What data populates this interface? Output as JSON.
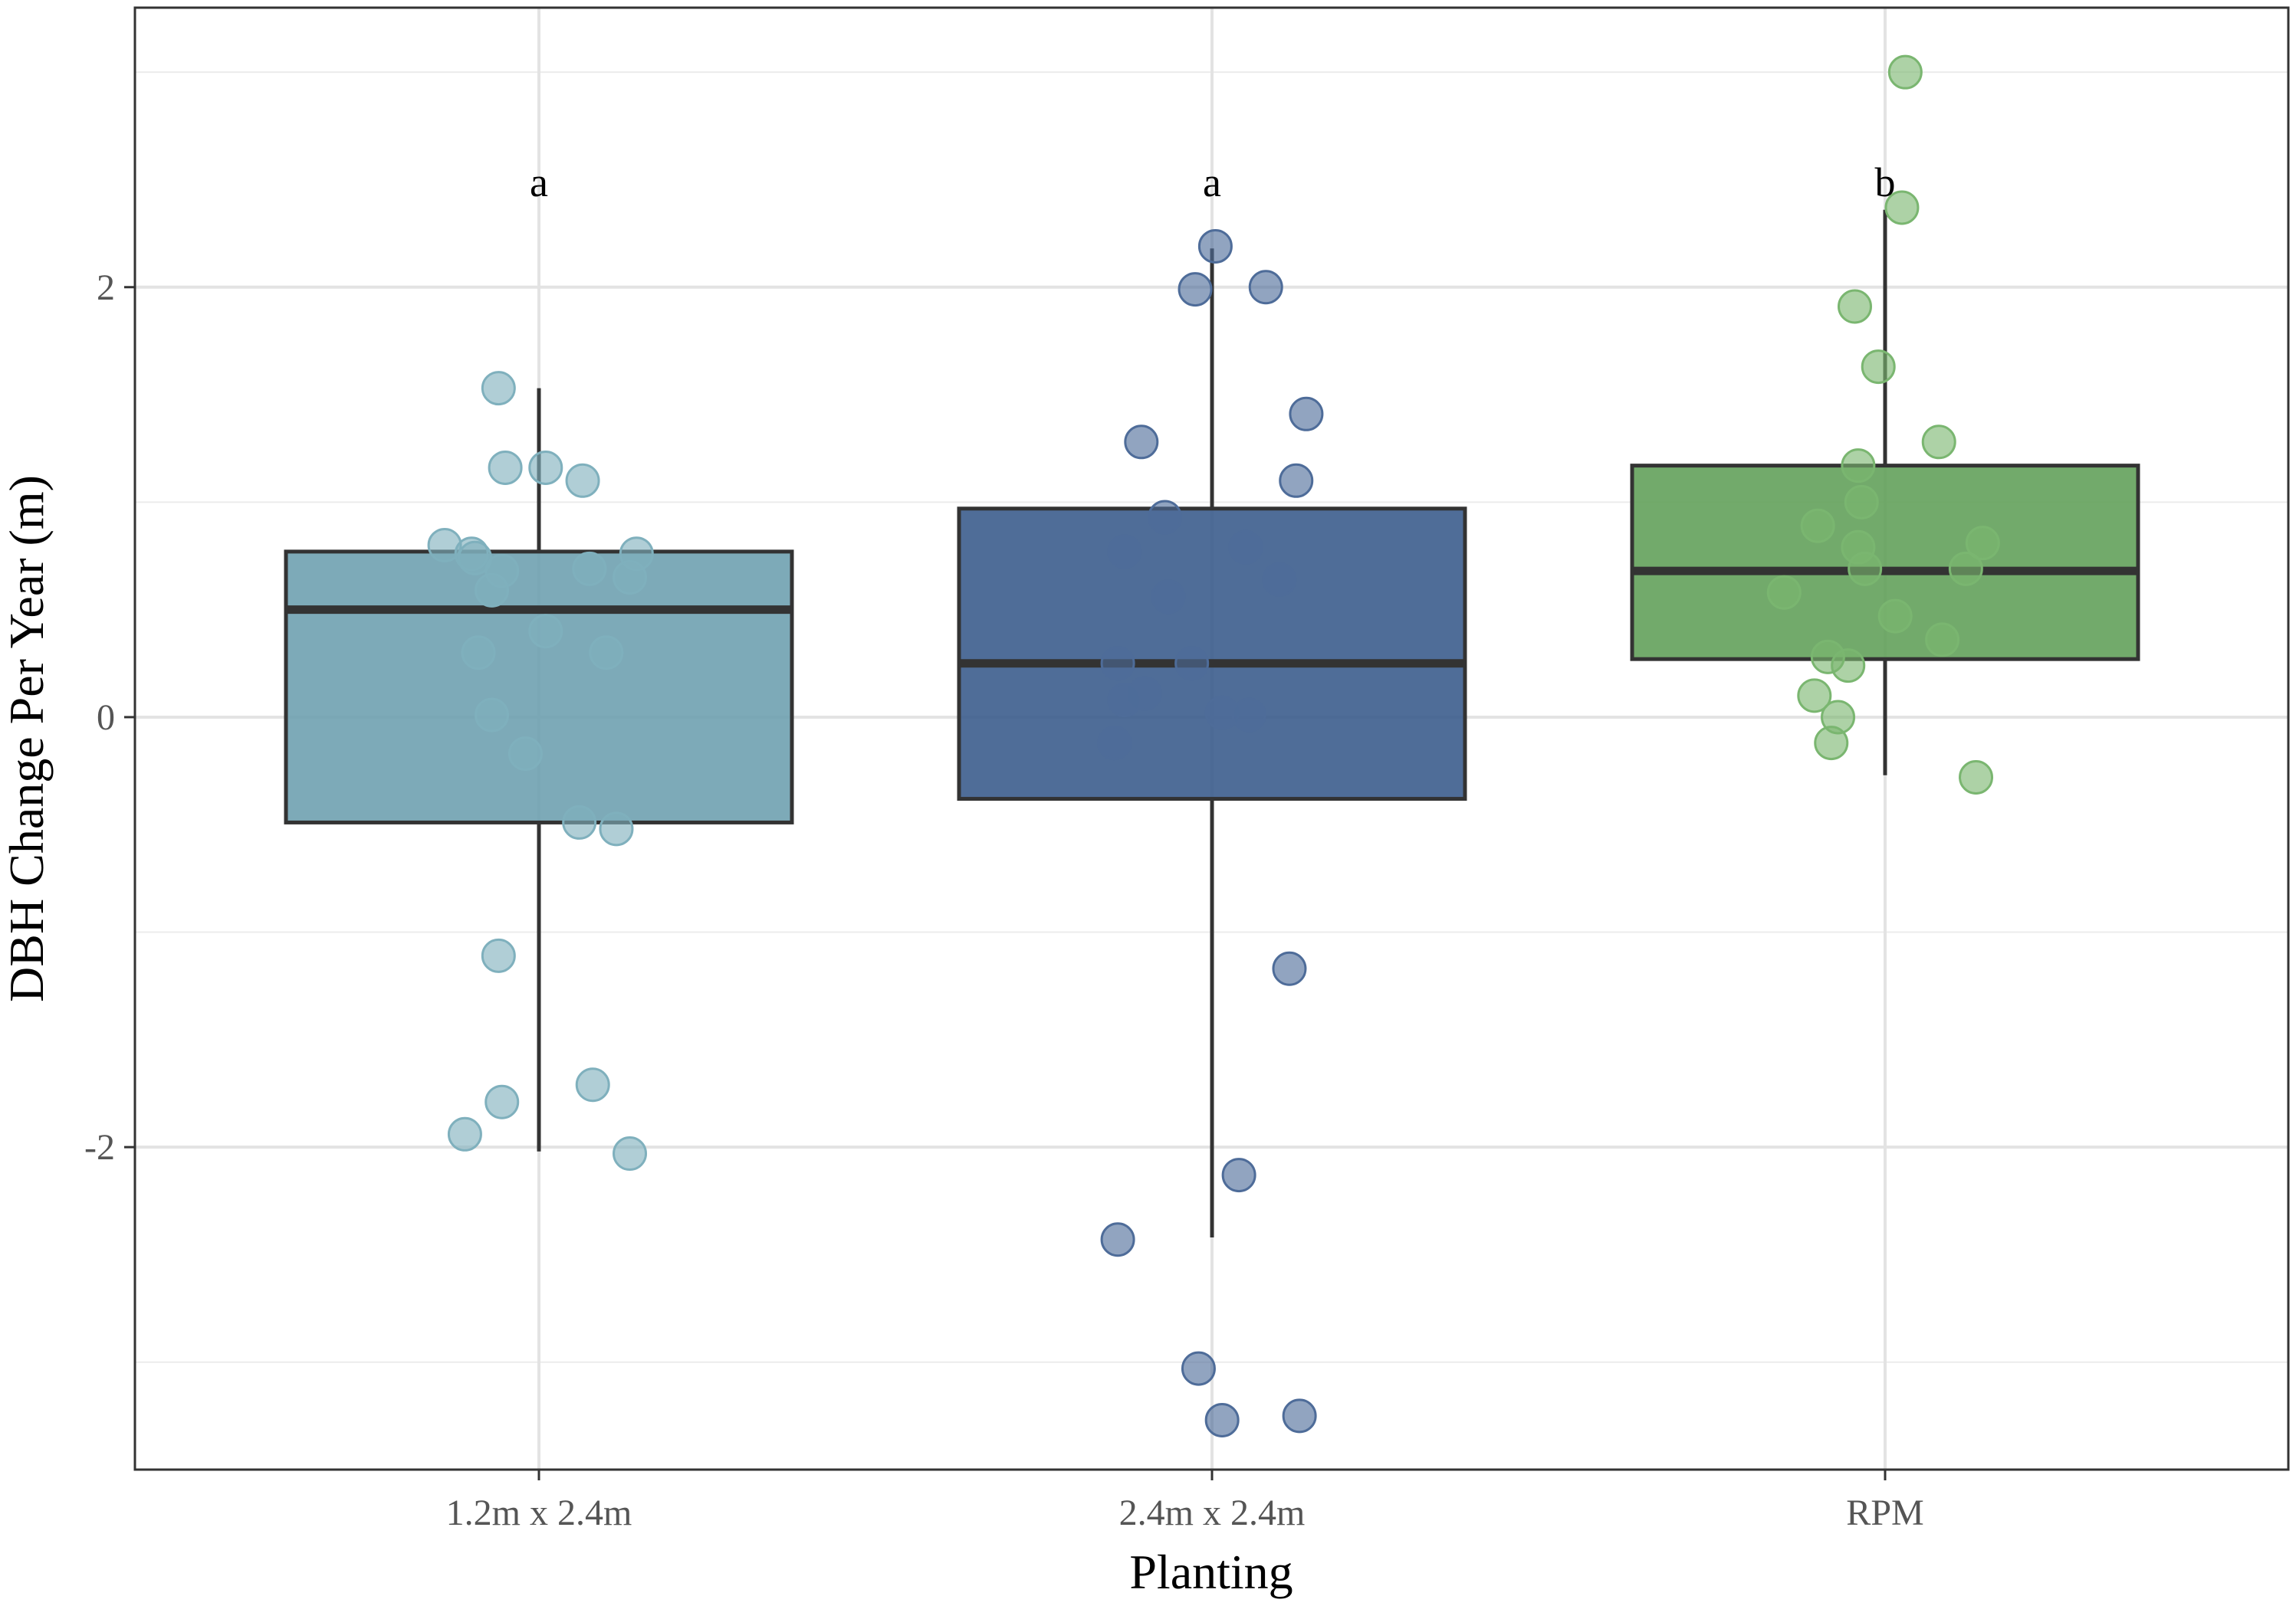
{
  "chart_data": {
    "type": "box",
    "title": "",
    "xlabel": "Planting",
    "ylabel": "DBH Change Per Year (m)",
    "ylim": [
      -3.5,
      3.3
    ],
    "yticks": [
      -2,
      0,
      2
    ],
    "ytick_labels": [
      "-2",
      "0",
      "2"
    ],
    "y_minor_gridlines": [
      -3,
      -1,
      1,
      3
    ],
    "grid": true,
    "legend": "none",
    "categories": [
      "1.2m x 2.4m",
      "2.4m x 2.4m",
      "RPM"
    ],
    "series": [
      {
        "name": "1.2m x 2.4m",
        "color": "#6b9eae",
        "point_color": "#7fb0bd",
        "letter": "a",
        "stats": {
          "whisker_low": -2.02,
          "q1": -0.49,
          "median": 0.5,
          "q3": 0.77,
          "whisker_high": 1.53
        },
        "points": [
          {
            "v": 1.53,
            "j": -0.06
          },
          {
            "v": 1.16,
            "j": -0.05
          },
          {
            "v": 1.16,
            "j": 0.01
          },
          {
            "v": 1.1,
            "j": 0.065
          },
          {
            "v": 0.8,
            "j": -0.14
          },
          {
            "v": 0.76,
            "j": -0.1
          },
          {
            "v": 0.74,
            "j": -0.095
          },
          {
            "v": 0.76,
            "j": 0.145
          },
          {
            "v": 0.68,
            "j": -0.055
          },
          {
            "v": 0.69,
            "j": 0.075
          },
          {
            "v": 0.65,
            "j": 0.135
          },
          {
            "v": 0.59,
            "j": -0.07
          },
          {
            "v": 0.4,
            "j": 0.01
          },
          {
            "v": 0.3,
            "j": -0.09
          },
          {
            "v": 0.3,
            "j": 0.1
          },
          {
            "v": 0.01,
            "j": -0.07
          },
          {
            "v": -0.17,
            "j": -0.02
          },
          {
            "v": -0.49,
            "j": 0.06
          },
          {
            "v": -0.52,
            "j": 0.115
          },
          {
            "v": -1.11,
            "j": -0.06
          },
          {
            "v": -1.71,
            "j": 0.08
          },
          {
            "v": -1.79,
            "j": -0.055
          },
          {
            "v": -1.94,
            "j": -0.11
          },
          {
            "v": -2.03,
            "j": 0.135
          }
        ]
      },
      {
        "name": "2.4m x 2.4m",
        "color": "#37598a",
        "point_color": "#4e6c99",
        "letter": "a",
        "stats": {
          "whisker_low": -2.42,
          "q1": -0.38,
          "median": 0.25,
          "q3": 0.97,
          "whisker_high": 2.18
        },
        "points": [
          {
            "v": 2.19,
            "j": 0.005
          },
          {
            "v": 2.0,
            "j": 0.08
          },
          {
            "v": 1.99,
            "j": -0.025
          },
          {
            "v": 1.41,
            "j": 0.14
          },
          {
            "v": 1.28,
            "j": -0.105
          },
          {
            "v": 1.1,
            "j": 0.125
          },
          {
            "v": 0.93,
            "j": -0.07
          },
          {
            "v": 0.79,
            "j": 0.05
          },
          {
            "v": 0.77,
            "j": -0.13
          },
          {
            "v": 0.64,
            "j": 0.1
          },
          {
            "v": 0.56,
            "j": -0.065
          },
          {
            "v": 0.25,
            "j": -0.14
          },
          {
            "v": 0.25,
            "j": -0.03
          },
          {
            "v": 0.11,
            "j": -0.1
          },
          {
            "v": 0.08,
            "j": -0.13
          },
          {
            "v": 0.02,
            "j": 0.015
          },
          {
            "v": 0.01,
            "j": 0.055
          },
          {
            "v": -0.12,
            "j": -0.145
          },
          {
            "v": -1.17,
            "j": 0.115
          },
          {
            "v": -2.13,
            "j": 0.04
          },
          {
            "v": -2.43,
            "j": -0.14
          },
          {
            "v": -3.03,
            "j": -0.02
          },
          {
            "v": -3.25,
            "j": 0.13
          },
          {
            "v": -3.27,
            "j": 0.015
          }
        ]
      },
      {
        "name": "RPM",
        "color": "#5f9e56",
        "point_color": "#7ab670",
        "letter": "b",
        "stats": {
          "whisker_low": -0.27,
          "q1": 0.27,
          "median": 0.68,
          "q3": 1.17,
          "whisker_high": 2.36
        },
        "points": [
          {
            "v": 3.0,
            "j": 0.03
          },
          {
            "v": 2.37,
            "j": 0.025
          },
          {
            "v": 1.91,
            "j": -0.045
          },
          {
            "v": 1.63,
            "j": -0.01
          },
          {
            "v": 1.28,
            "j": 0.08
          },
          {
            "v": 1.17,
            "j": -0.04
          },
          {
            "v": 1.0,
            "j": -0.035
          },
          {
            "v": 0.89,
            "j": -0.1
          },
          {
            "v": 0.81,
            "j": 0.145
          },
          {
            "v": 0.79,
            "j": -0.04
          },
          {
            "v": 0.69,
            "j": -0.03
          },
          {
            "v": 0.69,
            "j": 0.12
          },
          {
            "v": 0.58,
            "j": -0.15
          },
          {
            "v": 0.47,
            "j": 0.015
          },
          {
            "v": 0.36,
            "j": 0.085
          },
          {
            "v": 0.28,
            "j": -0.085
          },
          {
            "v": 0.24,
            "j": -0.055
          },
          {
            "v": 0.1,
            "j": -0.105
          },
          {
            "v": 0.0,
            "j": -0.07
          },
          {
            "v": -0.12,
            "j": -0.08
          },
          {
            "v": -0.28,
            "j": 0.135
          }
        ]
      }
    ]
  }
}
